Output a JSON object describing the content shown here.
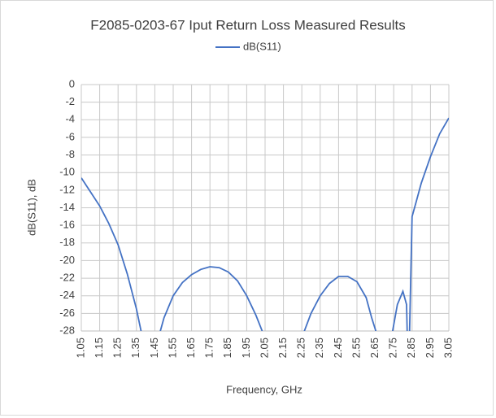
{
  "chart_data": {
    "type": "line",
    "title": "F2085-0203-67 Iput Return Loss Measured Results",
    "x_label": "Frequency, GHz",
    "y_label": "dB(S11), dB",
    "x": [
      1.05,
      1.1,
      1.15,
      1.2,
      1.25,
      1.3,
      1.35,
      1.38,
      1.42,
      1.45,
      1.48,
      1.5,
      1.55,
      1.6,
      1.65,
      1.7,
      1.75,
      1.8,
      1.85,
      1.9,
      1.95,
      2.0,
      2.04,
      2.1,
      2.2,
      2.26,
      2.3,
      2.35,
      2.4,
      2.45,
      2.5,
      2.55,
      2.6,
      2.63,
      2.66,
      2.7,
      2.74,
      2.77,
      2.8,
      2.82,
      2.83,
      2.85,
      2.87,
      2.9,
      2.95,
      3.0,
      3.05
    ],
    "series": [
      {
        "name": "dB(S11)",
        "color": "#4472c4",
        "values": [
          -10.6,
          -12.2,
          -13.8,
          -15.8,
          -18.2,
          -21.5,
          -25.5,
          -28.5,
          -35,
          -32,
          -28,
          -26.5,
          -24,
          -22.5,
          -21.6,
          -21.0,
          -20.7,
          -20.8,
          -21.3,
          -22.3,
          -24.0,
          -26.2,
          -28.3,
          -35,
          -35,
          -28.2,
          -26,
          -24.0,
          -22.6,
          -21.8,
          -21.8,
          -22.4,
          -24.2,
          -26.5,
          -28.5,
          -35,
          -28.5,
          -25,
          -23.5,
          -25,
          -34,
          -15,
          -13.5,
          -11.2,
          -8.2,
          -5.6,
          -3.8
        ]
      }
    ],
    "xlim": [
      1.05,
      3.05
    ],
    "xticks": [
      1.05,
      1.15,
      1.25,
      1.35,
      1.45,
      1.55,
      1.65,
      1.75,
      1.85,
      1.95,
      2.05,
      2.15,
      2.25,
      2.35,
      2.45,
      2.55,
      2.65,
      2.75,
      2.85,
      2.95,
      3.05
    ],
    "ylim": [
      -28,
      0
    ],
    "yticks": [
      0,
      -2,
      -4,
      -6,
      -8,
      -10,
      -12,
      -14,
      -16,
      -18,
      -20,
      -22,
      -24,
      -26,
      -28
    ],
    "grid": true,
    "legend": "top"
  }
}
